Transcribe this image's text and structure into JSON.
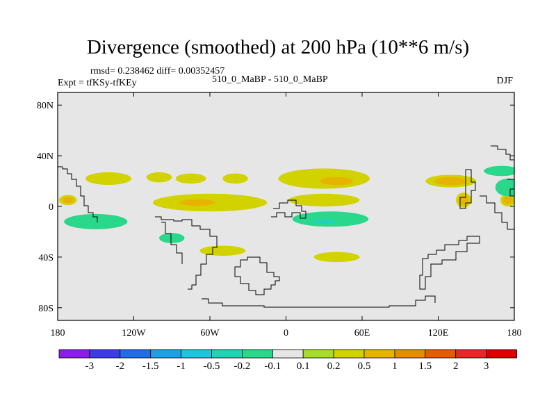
{
  "title": "Divergence (smoothed) at 200 hPa (10**6 m/s)",
  "stats": "rmsd= 0.238462 diff= 0.00352457",
  "expt": "Expt = tfKSy-tfKEy",
  "center_label": "510_0_MaBP - 510_0_MaBP",
  "season": "DJF",
  "chart_data": {
    "type": "heatmap",
    "title": "Divergence (smoothed) at 200 hPa (10**6 m/s)",
    "x_range": [
      -180,
      180
    ],
    "y_range": [
      -90,
      90
    ],
    "x_ticks": [
      {
        "v": -180,
        "label": "180"
      },
      {
        "v": -120,
        "label": "120W"
      },
      {
        "v": -60,
        "label": "60W"
      },
      {
        "v": 0,
        "label": "0"
      },
      {
        "v": 60,
        "label": "60E"
      },
      {
        "v": 120,
        "label": "120E"
      },
      {
        "v": 180,
        "label": "180"
      }
    ],
    "y_ticks": [
      {
        "v": 80,
        "label": "80N"
      },
      {
        "v": 40,
        "label": "40N"
      },
      {
        "v": 0,
        "label": "0"
      },
      {
        "v": -40,
        "label": "40S"
      },
      {
        "v": -80,
        "label": "80S"
      }
    ],
    "levels": [
      "-3",
      "-2",
      "-1.5",
      "-1",
      "-0.5",
      "-0.2",
      "-0.1",
      "0.1",
      "0.2",
      "0.5",
      "1",
      "1.5",
      "2",
      "3"
    ],
    "colors": [
      "#8c1ee6",
      "#3c3ce6",
      "#1e6ee6",
      "#1ea0e6",
      "#20c4dc",
      "#22d2b4",
      "#2ad88c",
      "#e6e6e6",
      "#a8dc2a",
      "#d2d200",
      "#e6b400",
      "#e68c00",
      "#e65a00",
      "#e62828",
      "#dc0000"
    ],
    "blobs": [
      {
        "lon": -140,
        "lat": 22,
        "rx": 18,
        "ry": 5,
        "level": 1
      },
      {
        "lon": -100,
        "lat": 23,
        "rx": 10,
        "ry": 4,
        "level": 1
      },
      {
        "lon": -75,
        "lat": 22,
        "rx": 12,
        "ry": 4,
        "level": 1
      },
      {
        "lon": -40,
        "lat": 22,
        "rx": 10,
        "ry": 4,
        "level": 1
      },
      {
        "lon": 30,
        "lat": 22,
        "rx": 36,
        "ry": 8,
        "level": 1
      },
      {
        "lon": 40,
        "lat": 20,
        "rx": 20,
        "ry": 5,
        "level": 2
      },
      {
        "lon": 130,
        "lat": 20,
        "rx": 20,
        "ry": 5,
        "level": 2
      },
      {
        "lon": -172,
        "lat": 5,
        "rx": 7,
        "ry": 4,
        "level": 2
      },
      {
        "lon": -60,
        "lat": 3,
        "rx": 45,
        "ry": 7,
        "level": 1
      },
      {
        "lon": -70,
        "lat": 3,
        "rx": 22,
        "ry": 4,
        "level": 2
      },
      {
        "lon": 30,
        "lat": 5,
        "rx": 28,
        "ry": 5,
        "level": 1
      },
      {
        "lon": 175,
        "lat": 5,
        "rx": 6,
        "ry": 5,
        "level": 2
      },
      {
        "lon": 140,
        "lat": 5,
        "rx": 6,
        "ry": 6,
        "level": 2
      },
      {
        "lon": -50,
        "lat": -35,
        "rx": 18,
        "ry": 4,
        "level": 1
      },
      {
        "lon": 40,
        "lat": -40,
        "rx": 18,
        "ry": 4,
        "level": 1
      },
      {
        "lon": -150,
        "lat": -12,
        "rx": 25,
        "ry": 6,
        "level": -1
      },
      {
        "lon": -90,
        "lat": -25,
        "rx": 10,
        "ry": 4,
        "level": -1
      },
      {
        "lon": 35,
        "lat": -10,
        "rx": 30,
        "ry": 6,
        "level": -1
      },
      {
        "lon": 30,
        "lat": -12,
        "rx": 15,
        "ry": 3,
        "level": -2
      },
      {
        "lon": 175,
        "lat": 15,
        "rx": 10,
        "ry": 7,
        "level": -1
      },
      {
        "lon": 170,
        "lat": 28,
        "rx": 14,
        "ry": 4,
        "level": -1
      }
    ]
  },
  "legend": {
    "start": 85,
    "step": 43.9,
    "y": 503,
    "h": 12,
    "label_y": 531
  }
}
